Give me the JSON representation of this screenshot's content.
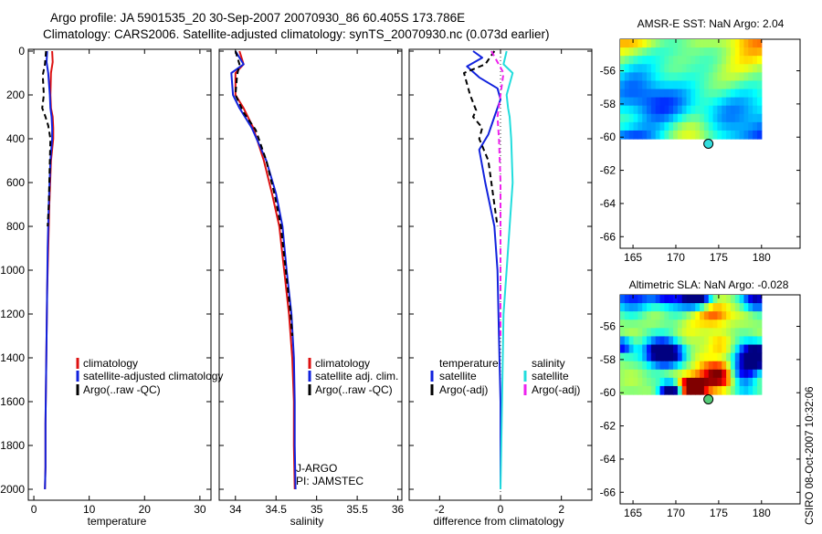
{
  "header": {
    "line1": "Argo profile: JA 5901535_20 30-Sep-2007 20070930_86 60.405S 173.786E",
    "line2": "Climatology: CARS2006. Satellite-adjusted climatology: synTS_20070930.nc (0.073d earlier)"
  },
  "footer": {
    "credit": "CSIRO 08-Oct-2007 10:32:06"
  },
  "colors": {
    "climatology": "#dd1111",
    "satellite": "#1122dd",
    "argo": "#000000",
    "sal_satellite": "#22dddd",
    "sal_argo": "#ee22ee"
  },
  "chart_data": [
    {
      "type": "line",
      "id": "temperature",
      "xlabel": "temperature",
      "xlim": [
        -1,
        32
      ],
      "ylim": [
        2050,
        0
      ],
      "xticks": [
        0,
        10,
        20,
        30
      ],
      "yticks": [
        0,
        200,
        400,
        600,
        800,
        1000,
        1200,
        1400,
        1600,
        1800,
        2000
      ],
      "series": [
        {
          "name": "climatology",
          "key": "climatology",
          "dash": false,
          "x": [
            3.3,
            3.4,
            3.1,
            3.0,
            3.1,
            3.4,
            3.5,
            3.5,
            3.1,
            2.8,
            2.6,
            2.4,
            2.3,
            2.2,
            2.1,
            2.1,
            2.0
          ],
          "y": [
            0,
            50,
            100,
            200,
            260,
            300,
            350,
            400,
            500,
            700,
            900,
            1100,
            1300,
            1500,
            1700,
            1900,
            2000
          ]
        },
        {
          "name": "satellite-adjusted climatology",
          "key": "satellite",
          "dash": false,
          "x": [
            2.4,
            2.3,
            2.6,
            2.9,
            3.0,
            3.2,
            3.3,
            3.3,
            3.0,
            2.7,
            2.5,
            2.4,
            2.3,
            2.2,
            2.1,
            2.1,
            2.0
          ],
          "y": [
            0,
            50,
            100,
            200,
            260,
            300,
            350,
            400,
            500,
            700,
            900,
            1100,
            1300,
            1500,
            1700,
            1900,
            2000
          ]
        },
        {
          "name": "Argo(..raw -QC)",
          "key": "argo",
          "dash": true,
          "x": [
            2.2,
            2.0,
            1.6,
            1.8,
            1.5,
            2.1,
            2.6,
            3.0,
            2.9,
            2.7,
            2.5
          ],
          "y": [
            0,
            60,
            110,
            200,
            260,
            300,
            340,
            400,
            500,
            700,
            800
          ]
        }
      ]
    },
    {
      "type": "line",
      "id": "salinity",
      "xlabel": "salinity",
      "xlim": [
        33.8,
        36.05
      ],
      "ylim": [
        2050,
        0
      ],
      "xticks": [
        34,
        34.5,
        35,
        35.5,
        36
      ],
      "xticklabels": [
        "34",
        "34.5",
        "35",
        "35.5",
        "36"
      ],
      "series": [
        {
          "name": "climatology",
          "key": "climatology",
          "dash": false,
          "x": [
            34.05,
            34.1,
            34.0,
            34.0,
            34.1,
            34.22,
            34.35,
            34.45,
            34.54,
            34.6,
            34.66,
            34.7,
            34.72,
            34.72,
            34.73
          ],
          "y": [
            0,
            60,
            100,
            200,
            260,
            350,
            500,
            650,
            800,
            1000,
            1200,
            1400,
            1600,
            1800,
            2000
          ]
        },
        {
          "name": "satellite adj. clim.",
          "key": "satellite",
          "dash": false,
          "x": [
            34.0,
            34.1,
            33.95,
            33.97,
            34.05,
            34.2,
            34.38,
            34.5,
            34.58,
            34.63,
            34.69,
            34.72,
            34.73,
            34.73,
            34.74
          ],
          "y": [
            0,
            60,
            100,
            200,
            260,
            350,
            500,
            650,
            800,
            1000,
            1200,
            1400,
            1600,
            1800,
            2000
          ]
        },
        {
          "name": "Argo(..raw -QC)",
          "key": "argo",
          "dash": true,
          "x": [
            34.0,
            34.05,
            34.02,
            34.0,
            34.1,
            34.25,
            34.38,
            34.48,
            34.56,
            34.62,
            34.68,
            34.7
          ],
          "y": [
            0,
            60,
            110,
            200,
            280,
            360,
            500,
            650,
            800,
            1000,
            1200,
            1300
          ]
        }
      ],
      "annotations": [
        "J-ARGO",
        "PI: JAMSTEC"
      ]
    },
    {
      "type": "line",
      "id": "difference",
      "xlabel": "difference from climatology",
      "xlim": [
        -3.0,
        3.0
      ],
      "ylim": [
        2050,
        0
      ],
      "xticks": [
        -2,
        0,
        2
      ],
      "legend_groups": [
        "temperature",
        "salinity"
      ],
      "series": [
        {
          "name": "satellite",
          "group": "temperature",
          "key": "satellite",
          "dash": false,
          "x": [
            -0.9,
            -0.6,
            -1.1,
            -0.7,
            -0.1,
            0.0,
            -0.2,
            -0.4,
            -0.7,
            -0.5,
            -0.2,
            -0.1,
            -0.05,
            0.0,
            0.0
          ],
          "y": [
            0,
            30,
            70,
            120,
            170,
            220,
            300,
            380,
            450,
            600,
            800,
            1000,
            1300,
            1600,
            2000
          ]
        },
        {
          "name": "Argo(-adj)",
          "group": "temperature",
          "key": "argo",
          "dash": true,
          "x": [
            -0.2,
            -0.5,
            -1.2,
            -1.0,
            -0.8,
            -0.9,
            -0.6,
            -0.7,
            -0.4,
            -0.2,
            -0.1
          ],
          "y": [
            0,
            60,
            100,
            200,
            270,
            300,
            350,
            400,
            500,
            700,
            800
          ]
        },
        {
          "name": "satellite",
          "group": "salinity",
          "key": "sal_satellite",
          "dash": false,
          "x": [
            0.2,
            0.1,
            0.4,
            0.2,
            0.25,
            0.3,
            0.35,
            0.4,
            0.3,
            0.2,
            0.1,
            0.05,
            0.0
          ],
          "y": [
            0,
            60,
            100,
            200,
            260,
            300,
            400,
            600,
            800,
            1000,
            1200,
            1600,
            2000
          ]
        },
        {
          "name": "Argo(-adj)",
          "group": "salinity",
          "key": "sal_argo",
          "dash": true,
          "x": [
            -0.3,
            -0.1,
            0.1,
            0.0,
            -0.1,
            -0.05,
            0.0,
            0.0,
            0.0
          ],
          "y": [
            0,
            50,
            100,
            200,
            300,
            400,
            600,
            1000,
            1300
          ]
        }
      ]
    }
  ],
  "maps": [
    {
      "id": "sst",
      "title": "AMSR-E SST: NaN Argo: 2.04",
      "xticks": [
        165,
        170,
        175,
        180
      ],
      "yticks": [
        -56,
        -58,
        -60,
        -62,
        -64,
        -66
      ],
      "xlim": [
        163.5,
        184.5
      ],
      "ylim": [
        -66.7,
        -54.1
      ],
      "data_extent": [
        163.5,
        180.0,
        -60.1,
        -54.1
      ],
      "argo_point": [
        173.8,
        -60.4
      ],
      "point_color": "#33dddd"
    },
    {
      "id": "sla",
      "title": "Altimetric SLA: NaN Argo: -0.028",
      "xticks": [
        165,
        170,
        175,
        180
      ],
      "yticks": [
        -56,
        -58,
        -60,
        -62,
        -64,
        -66
      ],
      "xlim": [
        163.5,
        184.5
      ],
      "ylim": [
        -66.7,
        -54.1
      ],
      "data_extent": [
        163.5,
        180.0,
        -60.1,
        -54.1
      ],
      "argo_point": [
        173.8,
        -60.4
      ],
      "point_color": "#55cc77"
    }
  ]
}
